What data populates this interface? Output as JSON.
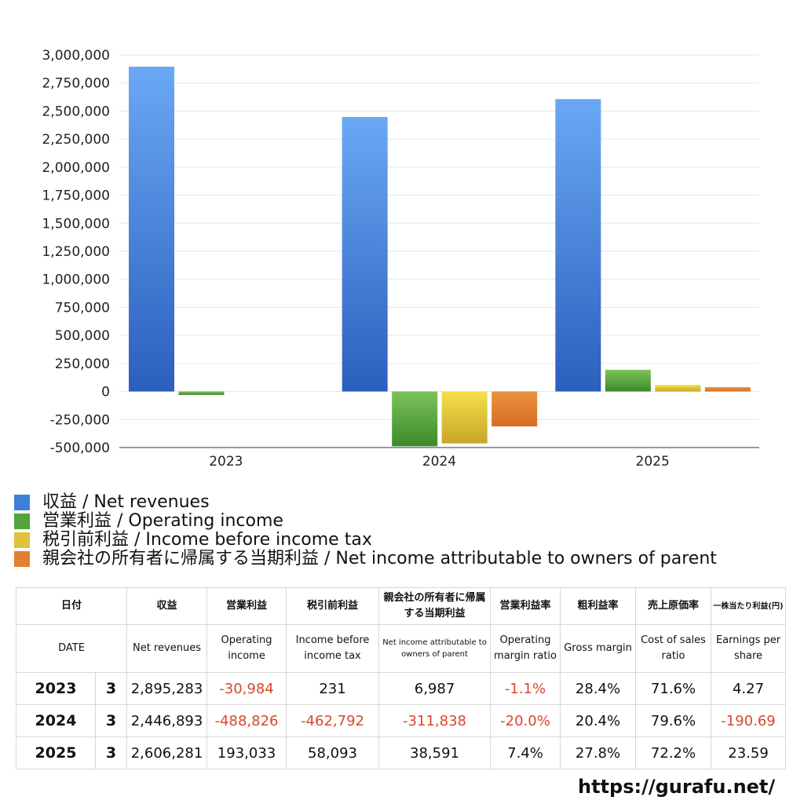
{
  "chart_data": {
    "type": "bar",
    "categories": [
      "2023",
      "2024",
      "2025"
    ],
    "ylim": [
      -500000,
      3000000
    ],
    "yticks": [
      -500000,
      -250000,
      0,
      250000,
      500000,
      750000,
      1000000,
      1250000,
      1500000,
      1750000,
      2000000,
      2250000,
      2500000,
      2750000,
      3000000
    ],
    "ytick_labels": [
      "-500,000",
      "-250,000",
      "0",
      "250,000",
      "500,000",
      "750,000",
      "1,000,000",
      "1,250,000",
      "1,500,000",
      "1,750,000",
      "2,000,000",
      "2,250,000",
      "2,500,000",
      "2,750,000",
      "3,000,000"
    ],
    "grid": true,
    "legend_position": "bottom",
    "series": [
      {
        "name": "収益 / Net revenues",
        "values": [
          2895283,
          2446893,
          2606281
        ],
        "color_top": "#6aa8f4",
        "color_bottom": "#2b5fbd"
      },
      {
        "name": "営業利益 / Operating income",
        "values": [
          -30984,
          -488826,
          193033
        ],
        "color_top": "#7cc35a",
        "color_bottom": "#3b8a2b"
      },
      {
        "name": "税引前利益 / Income before income tax",
        "values": [
          231,
          -462792,
          58093
        ],
        "color_top": "#f5e04a",
        "color_bottom": "#c7a52a"
      },
      {
        "name": "親会社の所有者に帰属する当期利益 / Net income attributable to owners of parent",
        "values": [
          6987,
          -311838,
          38591
        ],
        "color_top": "#eb9440",
        "color_bottom": "#d96c22"
      }
    ]
  },
  "legend": [
    {
      "label": "収益 / Net revenues",
      "color": "#3f7fdc"
    },
    {
      "label": "営業利益 / Operating income",
      "color": "#54a33d"
    },
    {
      "label": "税引前利益 / Income before income tax",
      "color": "#e0c23b"
    },
    {
      "label": "親会社の所有者に帰属する当期利益 / Net income attributable to owners of parent",
      "color": "#e27f31"
    }
  ],
  "table": {
    "header_jp": [
      "日付",
      "収益",
      "営業利益",
      "税引前利益",
      "親会社の所有者に帰属する当期利益",
      "営業利益率",
      "粗利益率",
      "売上原価率",
      "一株当たり利益(円)"
    ],
    "header_en": [
      "DATE",
      "Net revenues",
      "Operating income",
      "Income before income tax",
      "Net income attributable to owners of parent",
      "Operating margin ratio",
      "Gross margin",
      "Cost of sales ratio",
      "Earnings per share"
    ],
    "rows": [
      {
        "year": "2023",
        "month": "3",
        "values": [
          "2,895,283",
          "-30,984",
          "231",
          "6,987",
          "-1.1%",
          "28.4%",
          "71.6%",
          "4.27"
        ]
      },
      {
        "year": "2024",
        "month": "3",
        "values": [
          "2,446,893",
          "-488,826",
          "-462,792",
          "-311,838",
          "-20.0%",
          "20.4%",
          "79.6%",
          "-190.69"
        ]
      },
      {
        "year": "2025",
        "month": "3",
        "values": [
          "2,606,281",
          "193,033",
          "58,093",
          "38,591",
          "7.4%",
          "27.8%",
          "72.2%",
          "23.59"
        ]
      }
    ],
    "negative_color": "#d9472b"
  },
  "footer": {
    "url": "https://gurafu.net/"
  }
}
